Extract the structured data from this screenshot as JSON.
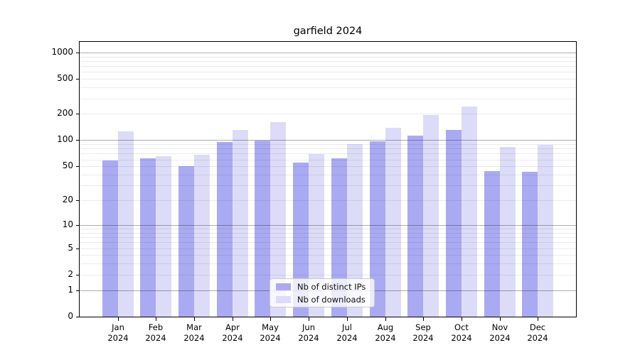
{
  "chart_data": {
    "type": "bar",
    "title": "garfield 2024",
    "categories": [
      "Jan 2024",
      "Feb 2024",
      "Mar 2024",
      "Apr 2024",
      "May 2024",
      "Jun 2024",
      "Jul 2024",
      "Aug 2024",
      "Sep 2024",
      "Oct 2024",
      "Nov 2024",
      "Dec 2024"
    ],
    "months": [
      "Jan",
      "Feb",
      "Mar",
      "Apr",
      "May",
      "Jun",
      "Jul",
      "Aug",
      "Sep",
      "Oct",
      "Nov",
      "Dec"
    ],
    "year": "2024",
    "series": [
      {
        "name": "Nb of distinct IPs",
        "color": "#aaaaf2",
        "values": [
          59,
          62,
          50,
          96,
          99,
          55,
          62,
          98,
          112,
          131,
          44,
          43
        ]
      },
      {
        "name": "Nb of downloads",
        "color": "#dcdcf8",
        "values": [
          126,
          65,
          68,
          132,
          162,
          69,
          90,
          139,
          193,
          243,
          83,
          88
        ]
      }
    ],
    "yscale": "log1p",
    "yticks": [
      0,
      1,
      2,
      5,
      10,
      20,
      50,
      100,
      200,
      500,
      1000
    ],
    "ylim": [
      0,
      1300
    ],
    "grid": true,
    "legend_position": "lower center",
    "xlabel": "",
    "ylabel": ""
  },
  "legend": {
    "items": [
      {
        "label": "Nb of distinct IPs"
      },
      {
        "label": "Nb of downloads"
      }
    ]
  },
  "colors": {
    "bar_distinct_ips": "#aaaaf2",
    "bar_downloads": "#dcdcf8",
    "grid_major": "rgba(0,0,0,0.32)",
    "grid_minor": "rgba(0,0,0,0.08)",
    "axis_frame": "#000000",
    "text": "#000000"
  }
}
